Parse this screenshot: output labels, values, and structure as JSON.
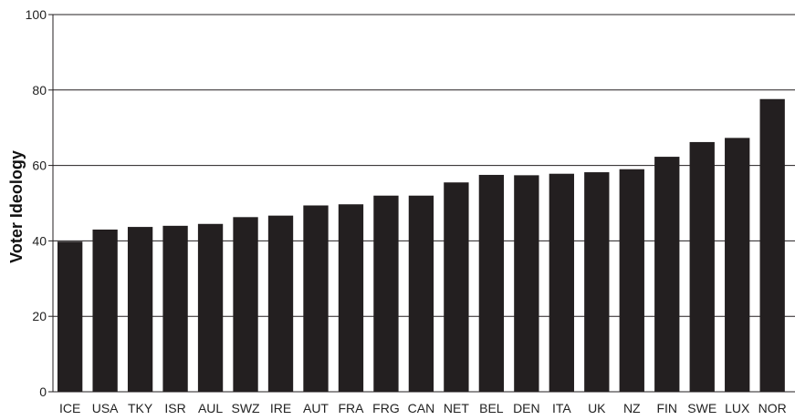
{
  "chart_data": {
    "type": "bar",
    "title": "",
    "xlabel": "",
    "ylabel": "Voter Ideology",
    "ylim": [
      0,
      100
    ],
    "yticks": [
      0,
      20,
      40,
      60,
      80,
      100
    ],
    "grid": true,
    "categories": [
      "ICE",
      "USA",
      "TKY",
      "ISR",
      "AUL",
      "SWZ",
      "IRE",
      "AUT",
      "FRA",
      "FRG",
      "CAN",
      "NET",
      "BEL",
      "DEN",
      "ITA",
      "UK",
      "NZ",
      "FIN",
      "SWE",
      "LUX",
      "NOR"
    ],
    "values": [
      39.8,
      43.0,
      43.7,
      44.0,
      44.5,
      46.3,
      46.7,
      49.4,
      49.7,
      52.0,
      52.0,
      55.5,
      57.5,
      57.4,
      57.8,
      58.2,
      59.0,
      62.3,
      66.2,
      67.3,
      77.6
    ],
    "colors": {
      "bar": "#231f20",
      "grid": "#231f20",
      "axis": "#231f20"
    }
  }
}
